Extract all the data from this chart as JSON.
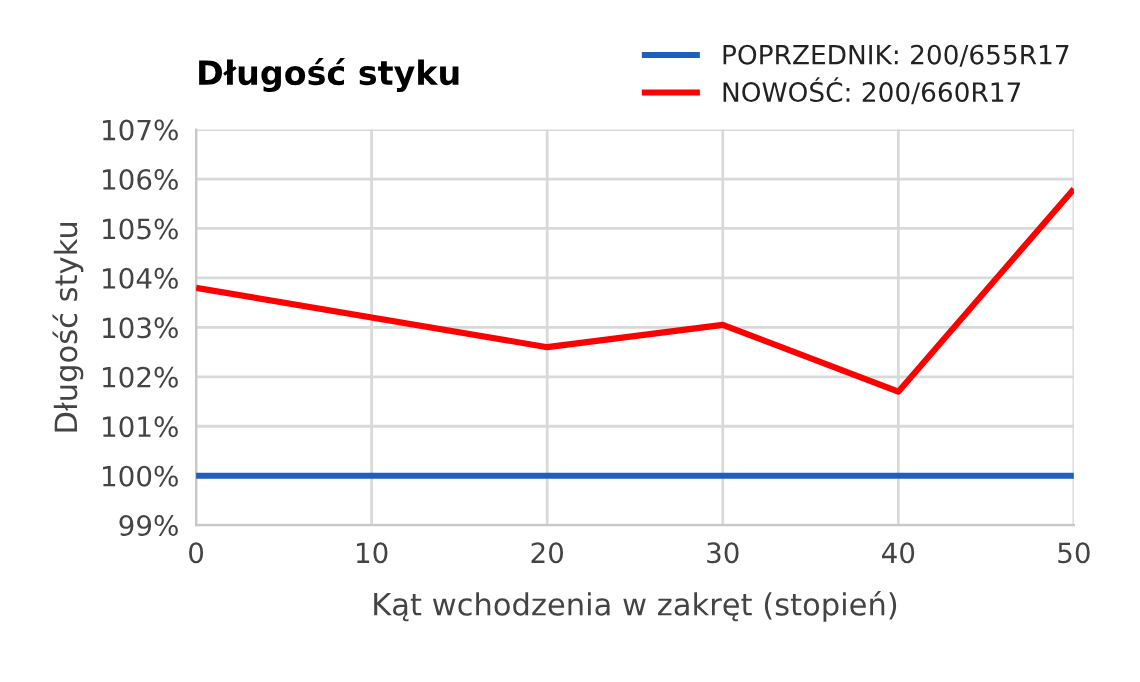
{
  "chart_data": {
    "type": "line",
    "title": "Długość styku",
    "xlabel": "Kąt wchodzenia w zakręt (stopień)",
    "ylabel": "Długość styku",
    "series": [
      {
        "name": "POPRZEDNIK: 200/655R17",
        "color": "#1f5fbf",
        "x": [
          0,
          50
        ],
        "values": [
          100,
          100
        ]
      },
      {
        "name": "NOWOŚĆ: 200/660R17",
        "color": "#ff0000",
        "x": [
          0,
          20,
          30,
          40,
          50
        ],
        "values": [
          103.8,
          102.6,
          103.05,
          101.7,
          105.8
        ]
      }
    ],
    "xlim": [
      0,
      50
    ],
    "xticks": [
      0,
      10,
      20,
      30,
      40,
      50
    ],
    "ylim": [
      99,
      107
    ],
    "yticks": [
      {
        "value": 99,
        "label": "99%"
      },
      {
        "value": 100,
        "label": "100%"
      },
      {
        "value": 101,
        "label": "101%"
      },
      {
        "value": 102,
        "label": "102%"
      },
      {
        "value": 103,
        "label": "103%"
      },
      {
        "value": 104,
        "label": "104%"
      },
      {
        "value": 105,
        "label": "105%"
      },
      {
        "value": 106,
        "label": "106%"
      },
      {
        "value": 107,
        "label": "107%"
      }
    ],
    "grid": true,
    "legend": "top right",
    "marker": "none",
    "line_style": "solid"
  }
}
